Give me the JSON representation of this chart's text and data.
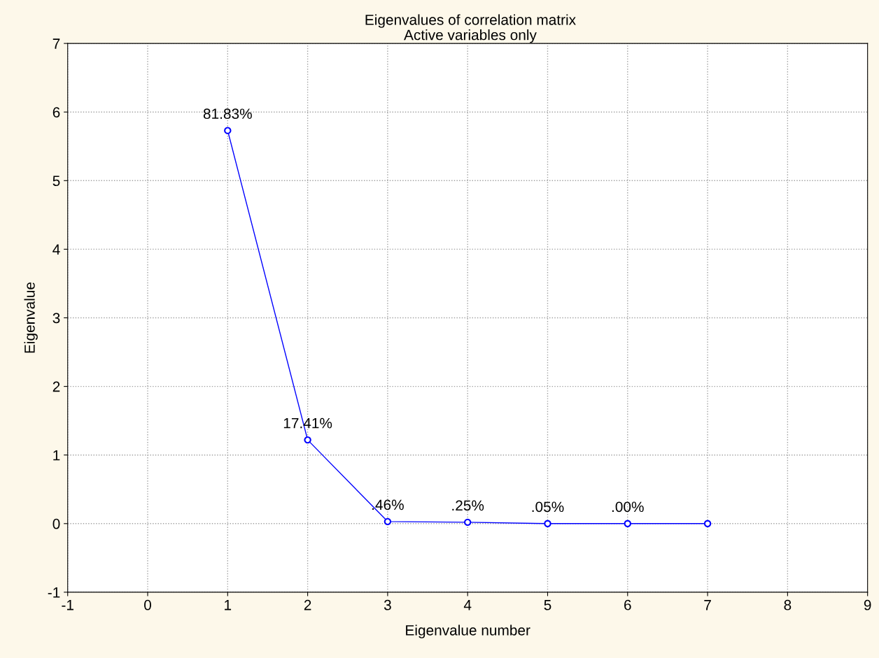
{
  "chart_data": {
    "type": "line",
    "title": "Eigenvalues of correlation matrix",
    "subtitle": "Active variables only",
    "xlabel": "Eigenvalue number",
    "ylabel": "Eigenvalue",
    "x": [
      1,
      2,
      3,
      4,
      5,
      6,
      7
    ],
    "series": [
      {
        "color": "#0000ff",
        "values": [
          5.73,
          1.22,
          0.03,
          0.02,
          0.0,
          0.0,
          0.0
        ]
      }
    ],
    "annotations": [
      {
        "text": "81.83%",
        "x": 1,
        "y": 5.73
      },
      {
        "text": "17.41%",
        "x": 2,
        "y": 1.22
      },
      {
        "text": ".46%",
        "x": 3,
        "y": 0.03
      },
      {
        "text": ".25%",
        "x": 4,
        "y": 0.02
      },
      {
        "text": ".05%",
        "x": 5,
        "y": 0.0
      },
      {
        "text": ".00%",
        "x": 6,
        "y": 0.0
      }
    ],
    "xlim": [
      -1,
      9
    ],
    "xticks": [
      -1,
      0,
      1,
      2,
      3,
      4,
      5,
      6,
      7,
      8,
      9
    ],
    "ylim": [
      -1,
      7
    ],
    "yticks": [
      -1,
      0,
      1,
      2,
      3,
      4,
      5,
      6,
      7
    ],
    "grid": true,
    "marker": "circle",
    "line_style": "solid",
    "legend": false
  }
}
